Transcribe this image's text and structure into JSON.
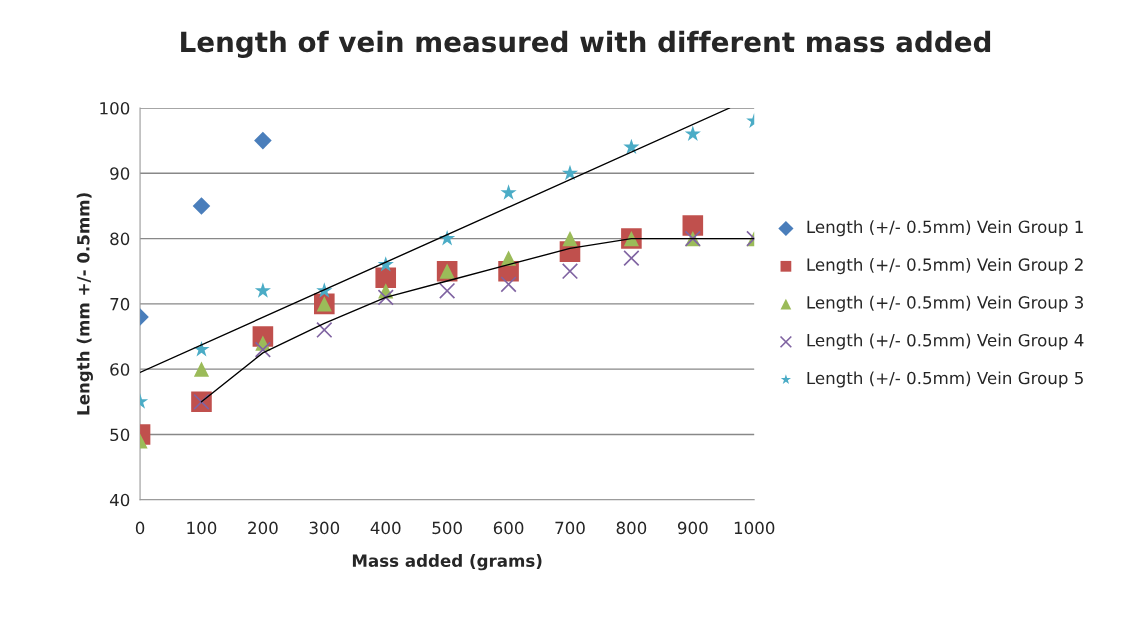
{
  "chart_data": {
    "type": "scatter",
    "title": "Length of vein measured with different mass added",
    "xlabel": "Mass added (grams)",
    "ylabel": "Length (mm +/- 0.5mm)",
    "x": [
      0,
      100,
      200,
      300,
      400,
      500,
      600,
      700,
      800,
      900,
      1000
    ],
    "xlim": [
      0,
      1000
    ],
    "xticks": [
      0,
      100,
      200,
      300,
      400,
      500,
      600,
      700,
      800,
      900,
      1000
    ],
    "ylim": [
      40,
      100
    ],
    "yticks": [
      40,
      50,
      60,
      70,
      80,
      90,
      100
    ],
    "grid": "y",
    "legend": "right",
    "series": [
      {
        "name": "Length (+/- 0.5mm) Vein Group 1",
        "color": "#4a7ebb",
        "marker": "diamond",
        "values": [
          68,
          85,
          95,
          null,
          null,
          null,
          null,
          null,
          null,
          null,
          null
        ]
      },
      {
        "name": "Length (+/- 0.5mm) Vein Group 2",
        "color": "#c0504d",
        "marker": "square",
        "values": [
          50,
          55,
          65,
          70,
          74,
          75,
          75,
          78,
          80,
          82,
          null
        ]
      },
      {
        "name": "Length (+/- 0.5mm) Vein Group 3",
        "color": "#9bbb59",
        "marker": "triangle",
        "values": [
          49,
          60,
          64,
          70,
          72,
          75,
          77,
          80,
          80,
          80,
          80
        ]
      },
      {
        "name": "Length (+/- 0.5mm) Vein Group 4",
        "color": "#8064a2",
        "marker": "cross",
        "values": [
          null,
          55,
          63,
          66,
          71,
          72,
          73,
          75,
          77,
          80,
          80
        ]
      },
      {
        "name": "Length (+/- 0.5mm) Vein Group 5",
        "color": "#4bacc6",
        "marker": "star",
        "values": [
          55,
          63,
          72,
          72,
          76,
          80,
          87,
          90,
          94,
          96,
          98
        ]
      },
      {
        "type": "line",
        "color": "#000000",
        "marker": "none",
        "x": [
          0,
          960
        ],
        "values": [
          59.5,
          100
        ]
      },
      {
        "type": "line",
        "color": "#000000",
        "marker": "none",
        "x": [
          100,
          200,
          300,
          400,
          500,
          600,
          700,
          800,
          900,
          1000
        ],
        "values": [
          55,
          62.5,
          67,
          71,
          73.5,
          76,
          78.5,
          80,
          80,
          80
        ]
      }
    ]
  }
}
